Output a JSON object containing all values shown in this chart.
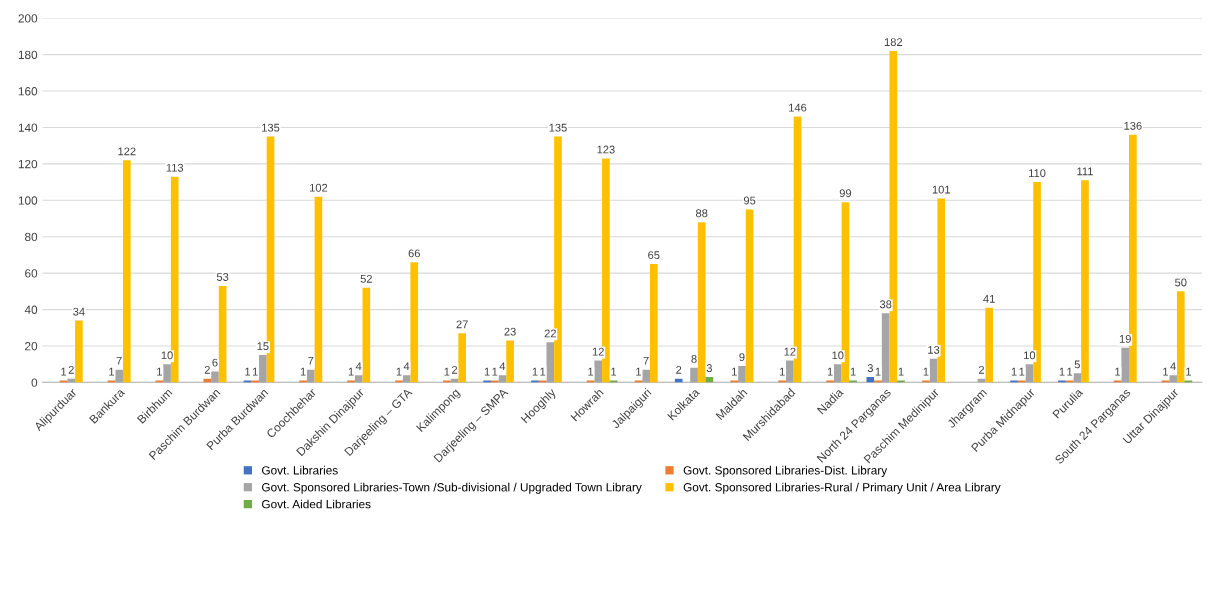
{
  "chart_data": {
    "type": "bar",
    "categories": [
      "Alipurduar",
      "Bankura",
      "Birbhum",
      "Paschim Burdwan",
      "Purba Burdwan",
      "Coochbehar",
      "Dakshin Dinajpur",
      "Darjeeling – GTA",
      "Kalimpong",
      "Darjeeling – SMPA",
      "Hooghly",
      "Howrah",
      "Jalpaiguri",
      "Kolkata",
      "Maldah",
      "Murshidabad",
      "Nadia",
      "North 24 Parganas",
      "Paschim Medinipur",
      "Jhargram",
      "Purba Midnapur",
      "Purulia",
      "South 24 Parganas",
      "Uttar Dinajpur"
    ],
    "series": [
      {
        "name": "Govt. Libraries",
        "color": "#4472c4",
        "values": [
          0,
          0,
          0,
          0,
          1,
          0,
          0,
          0,
          0,
          1,
          1,
          0,
          0,
          2,
          0,
          0,
          0,
          3,
          0,
          0,
          1,
          1,
          0,
          0
        ],
        "value_labels": [
          null,
          null,
          null,
          null,
          "1",
          null,
          null,
          null,
          null,
          "1",
          "1",
          null,
          null,
          "2",
          null,
          null,
          null,
          "3",
          null,
          null,
          "1",
          "1",
          null,
          null
        ]
      },
      {
        "name": "Govt. Sponsored Libraries-Dist. Library",
        "color": "#ed7d31",
        "values": [
          1,
          1,
          1,
          2,
          1,
          1,
          1,
          1,
          1,
          1,
          1,
          1,
          1,
          0,
          1,
          1,
          1,
          1,
          1,
          0,
          1,
          1,
          1,
          1
        ],
        "value_labels": [
          "1",
          "1",
          "1",
          "2",
          "1",
          "1",
          "1",
          "1",
          "1",
          "1",
          "1",
          "1",
          "1",
          null,
          "1",
          "1",
          "1",
          "1",
          "1",
          null,
          "1",
          "1",
          "1",
          "1"
        ]
      },
      {
        "name": "Govt. Sponsored Libraries-Town /Sub-divisional / Upgraded Town Library",
        "color": "#a5a5a5",
        "values": [
          2,
          7,
          10,
          6,
          15,
          7,
          4,
          4,
          2,
          4,
          22,
          12,
          7,
          8,
          9,
          12,
          10,
          38,
          13,
          2,
          10,
          5,
          19,
          4
        ],
        "value_labels": [
          "2",
          "7",
          "10",
          "6",
          "15",
          "7",
          "4",
          "4",
          "2",
          "4",
          "22",
          "12",
          "7",
          "8",
          "9",
          "12",
          "10",
          "38",
          "13",
          "2",
          "10",
          "5",
          "19",
          "4"
        ]
      },
      {
        "name": "Govt. Sponsored Libraries-Rural / Primary Unit / Area Library",
        "color": "#ffc000",
        "values": [
          34,
          122,
          113,
          53,
          135,
          102,
          52,
          66,
          27,
          23,
          135,
          123,
          65,
          88,
          95,
          146,
          99,
          182,
          101,
          41,
          110,
          111,
          136,
          50
        ],
        "value_labels": [
          "34",
          "122",
          "113",
          "53",
          "135",
          "102",
          "52",
          "66",
          "27",
          "23",
          "135",
          "123",
          "65",
          "88",
          "95",
          "146",
          "99",
          "182",
          "101",
          "41",
          "110",
          "111",
          "136",
          "50"
        ]
      },
      {
        "name": "Govt. Aided Libraries",
        "color": "#70ad47",
        "values": [
          0,
          0,
          0,
          0,
          0,
          0,
          0,
          0,
          0,
          0,
          0,
          1,
          0,
          3,
          0,
          0,
          1,
          1,
          0,
          0,
          0,
          0,
          0,
          1
        ],
        "value_labels": [
          null,
          null,
          null,
          null,
          null,
          null,
          null,
          null,
          null,
          null,
          null,
          "1",
          null,
          "3",
          null,
          null,
          "1",
          "1",
          null,
          null,
          null,
          null,
          null,
          "1"
        ]
      }
    ],
    "ylim": [
      0,
      200
    ],
    "yticks": [
      0,
      20,
      40,
      60,
      80,
      100,
      120,
      140,
      160,
      180,
      200
    ],
    "grid": "y",
    "legend": "bottom"
  }
}
